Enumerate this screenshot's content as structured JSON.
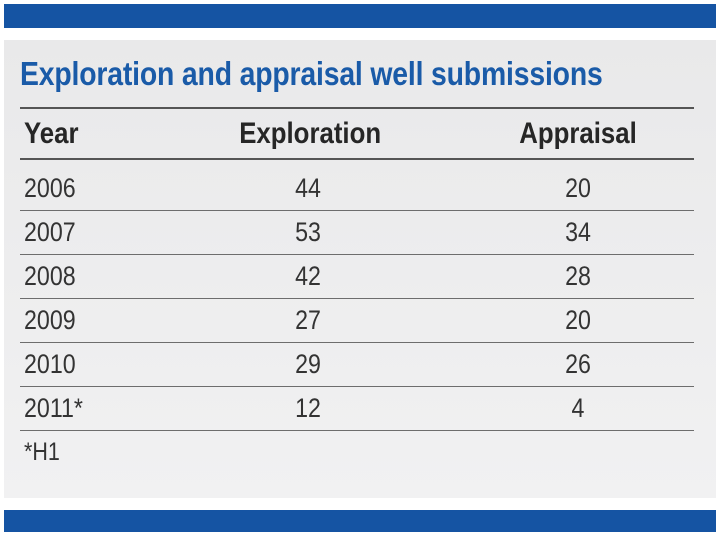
{
  "chart_data": {
    "type": "table",
    "title": "Exploration and appraisal well submissions",
    "columns": [
      "Year",
      "Exploration",
      "Appraisal"
    ],
    "rows": [
      [
        "2006",
        "44",
        "20"
      ],
      [
        "2007",
        "53",
        "34"
      ],
      [
        "2008",
        "42",
        "28"
      ],
      [
        "2009",
        "27",
        "20"
      ],
      [
        "2010",
        "29",
        "26"
      ],
      [
        "2011*",
        "12",
        "4"
      ]
    ],
    "footnote": "*H1"
  },
  "colors": {
    "accent_bar": "#1554a3",
    "title": "#1a5ba8",
    "panel_background": "#ececed"
  }
}
